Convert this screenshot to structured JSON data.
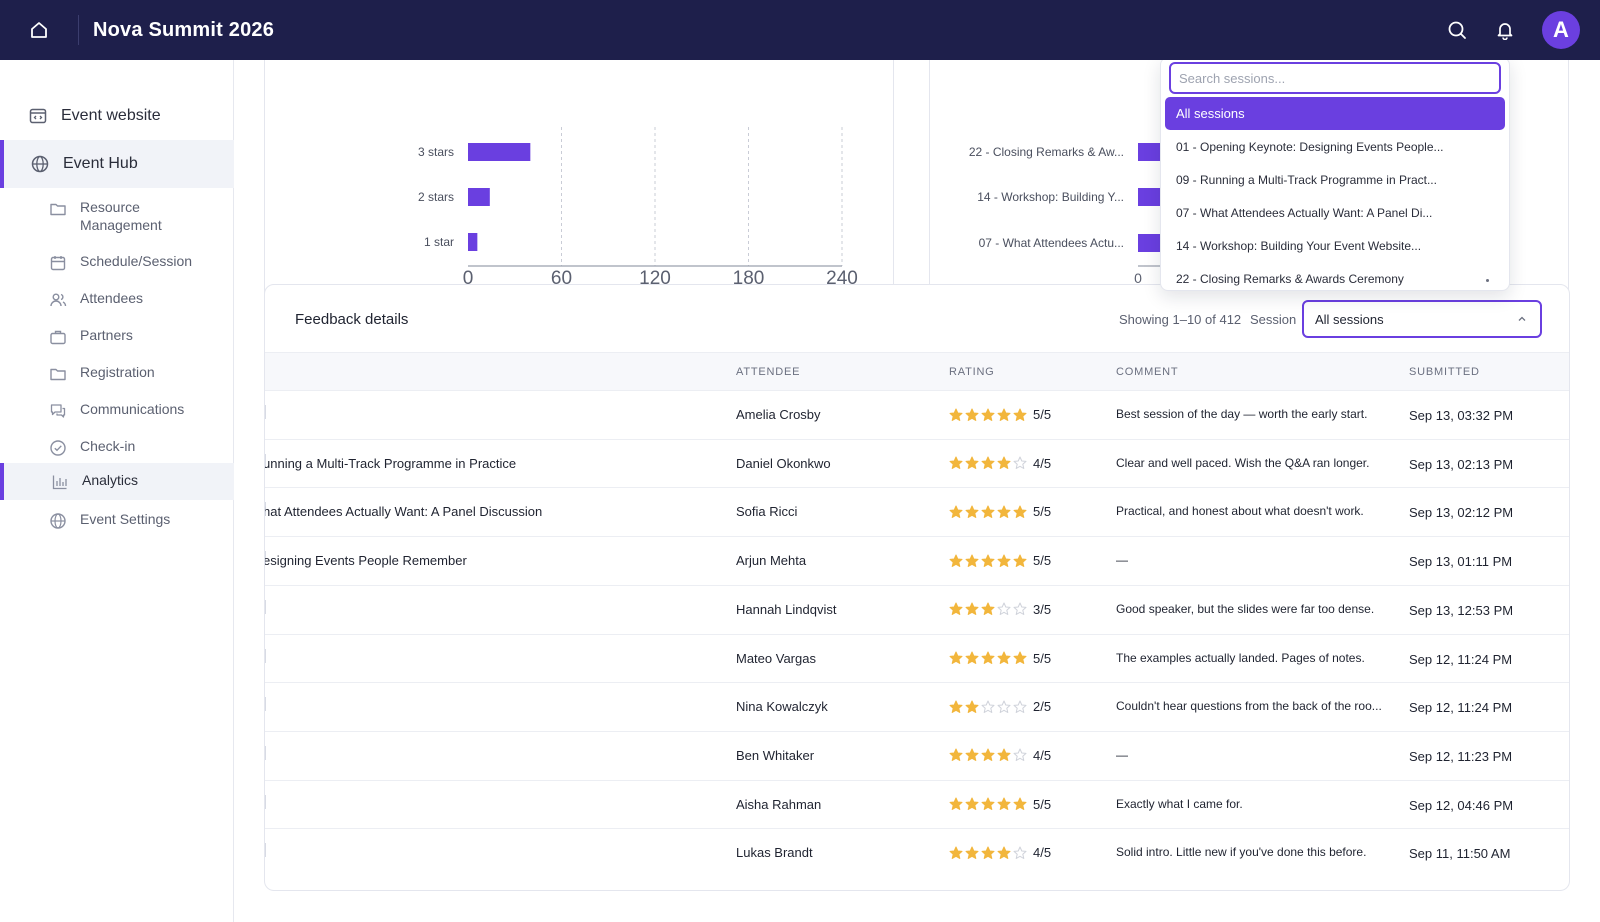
{
  "app": {
    "title": "Nova Summit 2026",
    "avatar_initial": "A"
  },
  "sidebar": {
    "top_items": [
      {
        "label": "Event website",
        "icon": "browser-window-icon"
      },
      {
        "label": "Event Hub",
        "icon": "globe-icon"
      }
    ],
    "sub_items": [
      {
        "label": "Resource Management",
        "icon": "folder-icon"
      },
      {
        "label": "Schedule/Session",
        "icon": "calendar-icon"
      },
      {
        "label": "Attendees",
        "icon": "people-icon"
      },
      {
        "label": "Partners",
        "icon": "briefcase-icon"
      },
      {
        "label": "Registration",
        "icon": "folder-icon"
      },
      {
        "label": "Communications",
        "icon": "chat-icon"
      },
      {
        "label": "Check-in",
        "icon": "check-circle-icon"
      },
      {
        "label": "Analytics",
        "icon": "bar-chart-icon"
      },
      {
        "label": "Event Settings",
        "icon": "globe-icon"
      }
    ]
  },
  "chart_data": [
    {
      "type": "bar",
      "orientation": "horizontal",
      "categories": [
        "3 stars",
        "2 stars",
        "1 star"
      ],
      "values": [
        40,
        14,
        6
      ],
      "xticks": [
        "0",
        "60",
        "120",
        "180",
        "240"
      ],
      "xlim": [
        0,
        240
      ],
      "grid": true,
      "color": "#6a3fe0"
    },
    {
      "type": "bar",
      "orientation": "horizontal",
      "categories": [
        "22 - Closing Remarks & Aw...",
        "14 - Workshop: Building Y...",
        "07 - What Attendees Actu..."
      ],
      "values": [
        1,
        1,
        1
      ],
      "xticks": [
        "0"
      ],
      "grid": false,
      "color": "#6a3fe0"
    }
  ],
  "feedback": {
    "title": "Feedback details",
    "showing": "Showing 1–10 of 412",
    "session_label": "Session",
    "session_value": "All sessions",
    "columns": [
      "ATTENDEE",
      "RATING",
      "COMMENT",
      "SUBMITTED"
    ],
    "rows": [
      {
        "session": "",
        "attendee": "Amelia Crosby",
        "stars": 5,
        "rating": "5/5",
        "comment": "Best session of the day — worth the early start.",
        "submitted": "Sep 13, 03:32 PM"
      },
      {
        "session": "unning a Multi-Track Programme in Practice",
        "attendee": "Daniel Okonkwo",
        "stars": 4,
        "rating": "4/5",
        "comment": "Clear and well paced. Wish the Q&A ran longer.",
        "submitted": "Sep 13, 02:13 PM"
      },
      {
        "session": "hat Attendees Actually Want: A Panel Discussion",
        "attendee": "Sofia Ricci",
        "stars": 5,
        "rating": "5/5",
        "comment": "Practical, and honest about what doesn't work.",
        "submitted": "Sep 13, 02:12 PM"
      },
      {
        "session": "esigning Events People Remember",
        "attendee": "Arjun Mehta",
        "stars": 5,
        "rating": "5/5",
        "comment": "—",
        "submitted": "Sep 13, 01:11 PM"
      },
      {
        "session": "",
        "attendee": "Hannah Lindqvist",
        "stars": 3,
        "rating": "3/5",
        "comment": "Good speaker, but the slides were far too dense.",
        "submitted": "Sep 13, 12:53 PM"
      },
      {
        "session": "",
        "attendee": "Mateo Vargas",
        "stars": 5,
        "rating": "5/5",
        "comment": "The examples actually landed. Pages of notes.",
        "submitted": "Sep 12, 11:24 PM"
      },
      {
        "session": "",
        "attendee": "Nina Kowalczyk",
        "stars": 2,
        "rating": "2/5",
        "comment": "Couldn't hear questions from the back of the roo...",
        "submitted": "Sep 12, 11:24 PM"
      },
      {
        "session": "",
        "attendee": "Ben Whitaker",
        "stars": 4,
        "rating": "4/5",
        "comment": "—",
        "submitted": "Sep 12, 11:23 PM"
      },
      {
        "session": "",
        "attendee": "Aisha Rahman",
        "stars": 5,
        "rating": "5/5",
        "comment": "Exactly what I came for.",
        "submitted": "Sep 12, 04:46 PM"
      },
      {
        "session": "",
        "attendee": "Lukas Brandt",
        "stars": 4,
        "rating": "4/5",
        "comment": "Solid intro. Little new if you've done this before.",
        "submitted": "Sep 11, 11:50 AM"
      }
    ]
  },
  "dropdown": {
    "search_placeholder": "Search sessions...",
    "options": [
      "All sessions",
      "01 - Opening Keynote: Designing Events People...",
      "09 - Running a Multi-Track Programme in Pract...",
      "07 - What Attendees Actually Want: A Panel Di...",
      "14 - Workshop: Building Your Event Website...",
      "22 - Closing Remarks & Awards Ceremony"
    ],
    "selected_index": 0
  },
  "colors": {
    "accent": "#6a3fe0",
    "topbar": "#1e1f4b",
    "star": "#f2b63c",
    "star_empty": "#cfd2da"
  }
}
